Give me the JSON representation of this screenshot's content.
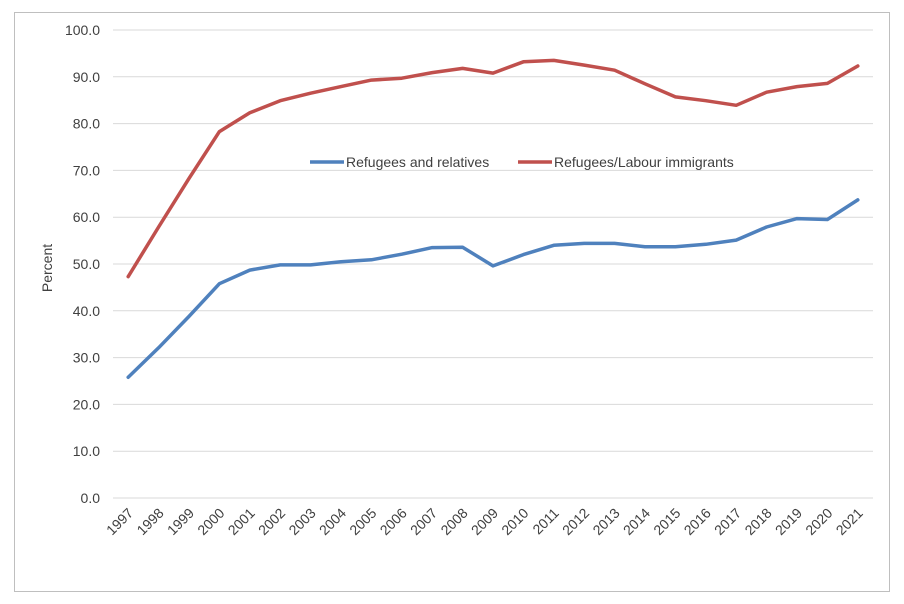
{
  "chart_data": {
    "type": "line",
    "title": "",
    "xlabel": "",
    "ylabel": "Percent",
    "ylim": [
      0,
      100
    ],
    "yticks": [
      "0.0",
      "10.0",
      "20.0",
      "30.0",
      "40.0",
      "50.0",
      "60.0",
      "70.0",
      "80.0",
      "90.0",
      "100.0"
    ],
    "ytick_values": [
      0,
      10,
      20,
      30,
      40,
      50,
      60,
      70,
      80,
      90,
      100
    ],
    "categories": [
      "1997",
      "1998",
      "1999",
      "2000",
      "2001",
      "2002",
      "2003",
      "2004",
      "2005",
      "2006",
      "2007",
      "2008",
      "2009",
      "2010",
      "2011",
      "2012",
      "2013",
      "2014",
      "2015",
      "2016",
      "2017",
      "2018",
      "2019",
      "2020",
      "2021"
    ],
    "grid": true,
    "legend_position": "center",
    "series": [
      {
        "name": "Refugees and relatives",
        "color": "#4f81bd",
        "values": [
          25.8,
          32.1,
          38.8,
          45.8,
          48.7,
          49.8,
          49.8,
          50.5,
          50.9,
          52.1,
          53.5,
          53.6,
          49.6,
          52.0,
          54.0,
          54.4,
          54.4,
          53.7,
          53.7,
          54.2,
          55.1,
          57.9,
          59.7,
          59.5,
          63.7
        ]
      },
      {
        "name": "Refugees/Labour immigrants",
        "color": "#c0504d",
        "values": [
          47.3,
          57.9,
          68.3,
          78.3,
          82.3,
          84.9,
          86.5,
          87.9,
          89.3,
          89.7,
          90.9,
          91.8,
          90.8,
          93.2,
          93.5,
          92.5,
          91.4,
          88.5,
          85.7,
          84.9,
          83.9,
          86.7,
          87.9,
          88.6,
          92.3
        ]
      }
    ]
  }
}
